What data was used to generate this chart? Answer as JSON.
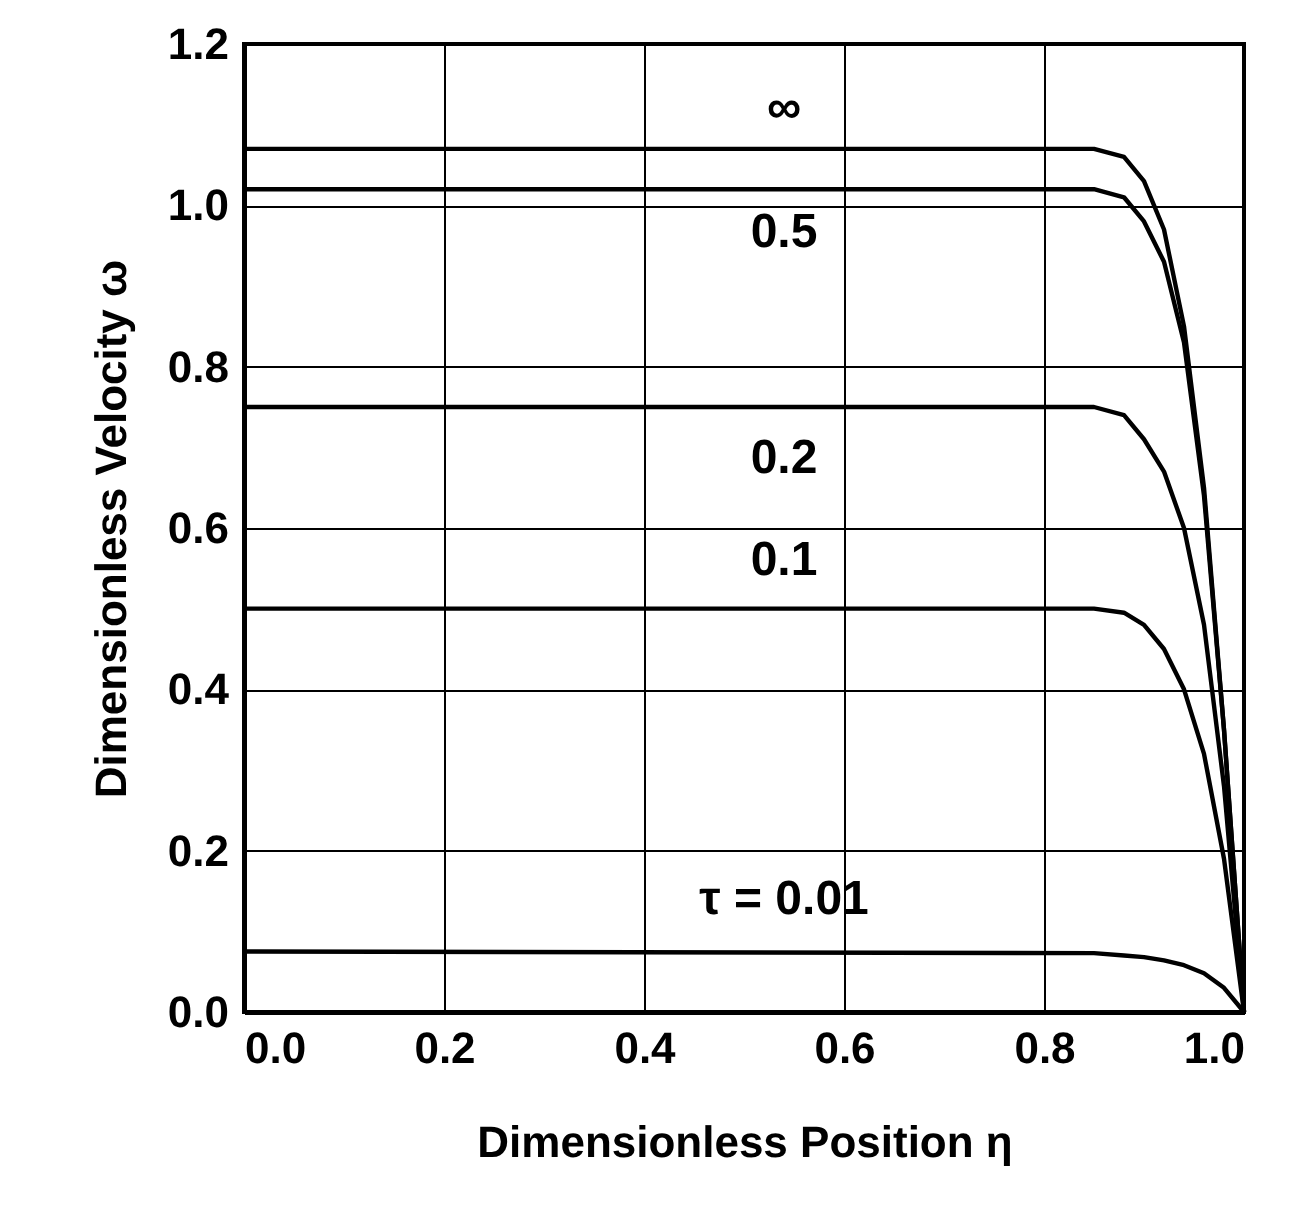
{
  "chart_data": {
    "type": "line",
    "xlabel": "Dimensionless Position   η",
    "ylabel": "Dimensionless Velocity   ω",
    "x": [
      0,
      0.85,
      0.88,
      0.9,
      0.92,
      0.94,
      0.96,
      0.98,
      1.0
    ],
    "series": [
      {
        "name": "∞",
        "color": "#000000",
        "values": [
          1.07,
          1.07,
          1.06,
          1.03,
          0.97,
          0.85,
          0.65,
          0.35,
          0
        ]
      },
      {
        "name": "0.5",
        "color": "#000000",
        "values": [
          1.02,
          1.02,
          1.01,
          0.98,
          0.93,
          0.83,
          0.64,
          0.35,
          0
        ]
      },
      {
        "name": "0.2",
        "color": "#000000",
        "values": [
          0.75,
          0.75,
          0.74,
          0.71,
          0.67,
          0.6,
          0.48,
          0.28,
          0
        ]
      },
      {
        "name": "0.1",
        "color": "#000000",
        "values": [
          0.5,
          0.5,
          0.495,
          0.48,
          0.45,
          0.4,
          0.32,
          0.19,
          0
        ]
      },
      {
        "name": "τ = 0.01",
        "color": "#000000",
        "values": [
          0.075,
          0.073,
          0.07,
          0.068,
          0.064,
          0.058,
          0.048,
          0.03,
          0
        ]
      }
    ],
    "xlim": [
      0,
      1.0
    ],
    "ylim": [
      0,
      1.2
    ],
    "xticks": [
      {
        "value": 0,
        "label": "0.0"
      },
      0.2,
      0.4,
      0.6,
      0.8,
      {
        "value": 1.0,
        "label": "1.0"
      }
    ],
    "yticks": [
      {
        "value": 0,
        "label": "0.0"
      },
      0.2,
      0.4,
      0.6,
      0.8,
      {
        "value": 1.0,
        "label": "1.0"
      },
      1.2
    ],
    "grid": true,
    "legend": false,
    "marker": "none",
    "line_style": "solid"
  }
}
